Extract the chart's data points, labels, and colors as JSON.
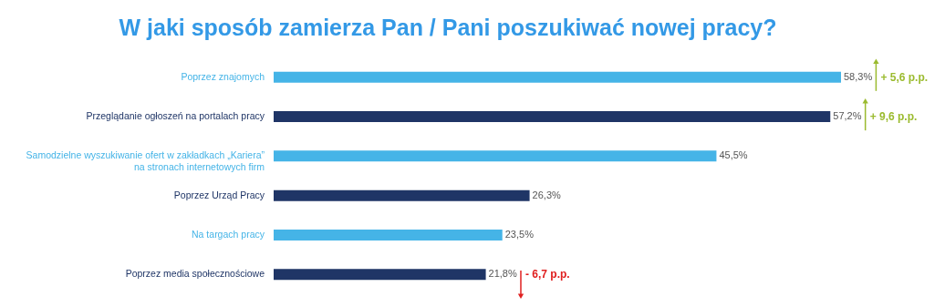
{
  "chart_data": {
    "type": "bar",
    "orientation": "horizontal",
    "title": "W jaki sposób zamierza Pan / Pani poszukiwać nowej pracy?",
    "categories": [
      "Poprzez znajomych",
      "Przeglądanie ogłoszeń na portalach pracy",
      "Samodzielne wyszukiwanie ofert w zakładkach „Kariera”\nna stronach internetowych firm",
      "Poprzez Urząd Pracy",
      "Na targach pracy",
      "Poprzez media społecznościowe"
    ],
    "values": [
      58.3,
      57.2,
      45.5,
      26.3,
      23.5,
      21.8
    ],
    "colors": [
      "#45b4e7",
      "#1f3566",
      "#45b4e7",
      "#1f3566",
      "#45b4e7",
      "#1f3566"
    ],
    "value_labels": [
      "58,3%",
      "57,2%",
      "45,5%",
      "26,3%",
      "23,5%",
      "21,8%"
    ],
    "annotations": [
      "+ 5,6 p.p.",
      "+ 9,6 p.p.",
      "- 6,7 p.p."
    ],
    "grid": false
  }
}
